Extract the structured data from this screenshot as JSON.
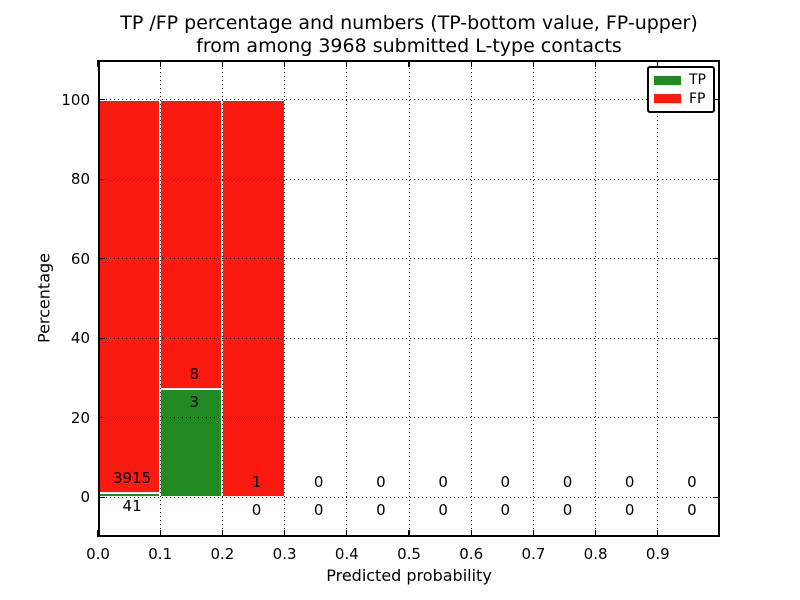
{
  "title": {
    "line1": "TP /FP percentage and numbers (TP-bottom value, FP-upper)",
    "line2": "from among 3968 submitted L-type contacts"
  },
  "axes": {
    "xlabel": "Predicted probability",
    "ylabel": "Percentage",
    "xticks": [
      "0.0",
      "0.1",
      "0.2",
      "0.3",
      "0.4",
      "0.5",
      "0.6",
      "0.7",
      "0.8",
      "0.9"
    ],
    "yticks": [
      "0",
      "20",
      "40",
      "60",
      "80",
      "100"
    ]
  },
  "legend": {
    "items": [
      {
        "label": "TP",
        "color": "#228a22"
      },
      {
        "label": "FP",
        "color": "#fa1a0f"
      }
    ]
  },
  "chart_data": {
    "type": "bar",
    "stacked": true,
    "title": "TP /FP percentage and numbers (TP-bottom value, FP-upper) from among 3968 submitted L-type contacts",
    "xlabel": "Predicted probability",
    "ylabel": "Percentage",
    "xlim": [
      0.0,
      1.0
    ],
    "ylim": [
      -10,
      110
    ],
    "grid": true,
    "legend_position": "upper right",
    "total_contacts": 3968,
    "bin_edges": [
      0.0,
      0.1,
      0.2,
      0.3,
      0.4,
      0.5,
      0.6,
      0.7,
      0.8,
      0.9,
      1.0
    ],
    "series": [
      {
        "name": "TP",
        "color": "#228a22",
        "counts": [
          41,
          3,
          0,
          0,
          0,
          0,
          0,
          0,
          0,
          0
        ],
        "percent": [
          1.04,
          27.27,
          0,
          0,
          0,
          0,
          0,
          0,
          0,
          0
        ]
      },
      {
        "name": "FP",
        "color": "#fa1a0f",
        "counts": [
          3915,
          8,
          1,
          0,
          0,
          0,
          0,
          0,
          0,
          0
        ],
        "percent": [
          98.96,
          72.73,
          100,
          0,
          0,
          0,
          0,
          0,
          0,
          0
        ]
      }
    ]
  }
}
